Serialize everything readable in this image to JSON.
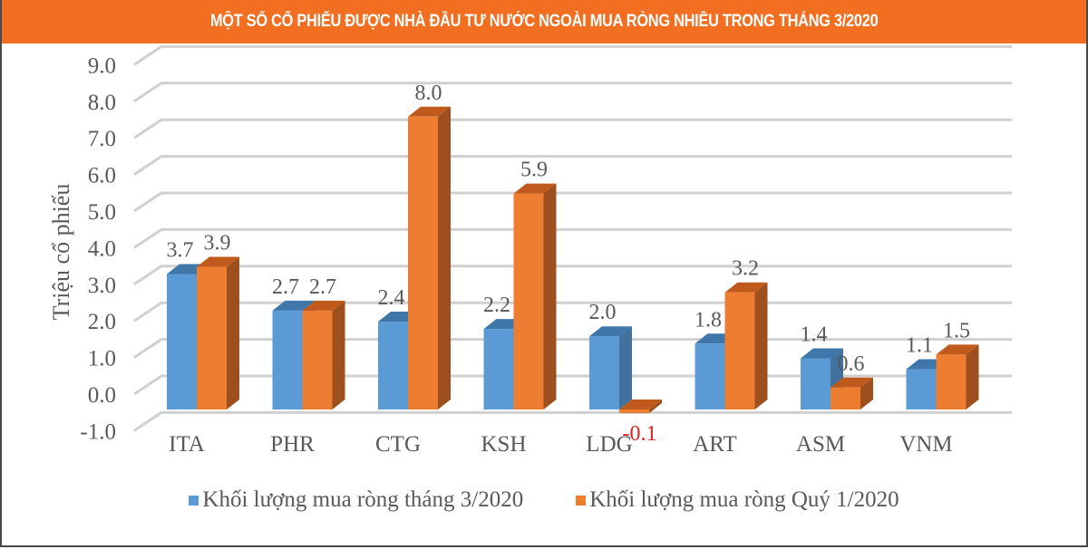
{
  "title": "MỘT SỐ CỔ PHIẾU ĐƯỢC NHÀ ĐẦU TƯ NƯỚC NGOÀI MUA RÒNG NHIỀU TRONG THÁNG 3/2020",
  "colors": {
    "header": "#f26f21",
    "series1": "#5b9bd5",
    "series1_side": "#41719c",
    "series1_top": "#3f77ab",
    "series2": "#ed7d31",
    "series2_side": "#9e4f1e",
    "series2_top": "#c05a1c",
    "negative_label": "#e02020",
    "axis_text": "#595959",
    "gridline": "#d0d0d0"
  },
  "legend": [
    {
      "label": "Khối lượng mua ròng tháng 3/2020",
      "color": "#5b9bd5"
    },
    {
      "label": "Khối lượng mua ròng Quý 1/2020",
      "color": "#ed7d31"
    }
  ],
  "chart_data": {
    "type": "bar",
    "style": "3d-clustered-column",
    "title": "MỘT SỐ CỔ PHIẾU ĐƯỢC NHÀ ĐẦU TƯ NƯỚC NGOÀI MUA RÒNG NHIỀU TRONG THÁNG 3/2020",
    "xlabel": "",
    "ylabel": "Triệu cổ phiếu",
    "ylim": [
      -1.0,
      9.0
    ],
    "yticks": [
      "-1.0",
      "0.0",
      "1.0",
      "2.0",
      "3.0",
      "4.0",
      "5.0",
      "6.0",
      "7.0",
      "8.0",
      "9.0"
    ],
    "grid": true,
    "legend_position": "bottom",
    "categories": [
      "ITA",
      "PHR",
      "CTG",
      "KSH",
      "LDG",
      "ART",
      "ASM",
      "VNM"
    ],
    "series": [
      {
        "name": "Khối lượng mua ròng tháng 3/2020",
        "values": [
          3.7,
          2.7,
          2.4,
          2.2,
          2.0,
          1.8,
          1.4,
          1.1
        ],
        "labels": [
          "3.7",
          "2.7",
          "2.4",
          "2.2",
          "2.0",
          "1.8",
          "1.4",
          "1.1"
        ]
      },
      {
        "name": "Khối lượng mua ròng Quý 1/2020",
        "values": [
          3.9,
          2.7,
          8.0,
          5.9,
          -0.1,
          3.2,
          0.6,
          1.5
        ],
        "labels": [
          "3.9",
          "2.7",
          "8.0",
          "5.9",
          "-0.1",
          "3.2",
          "0.6",
          "1.5"
        ]
      }
    ]
  }
}
